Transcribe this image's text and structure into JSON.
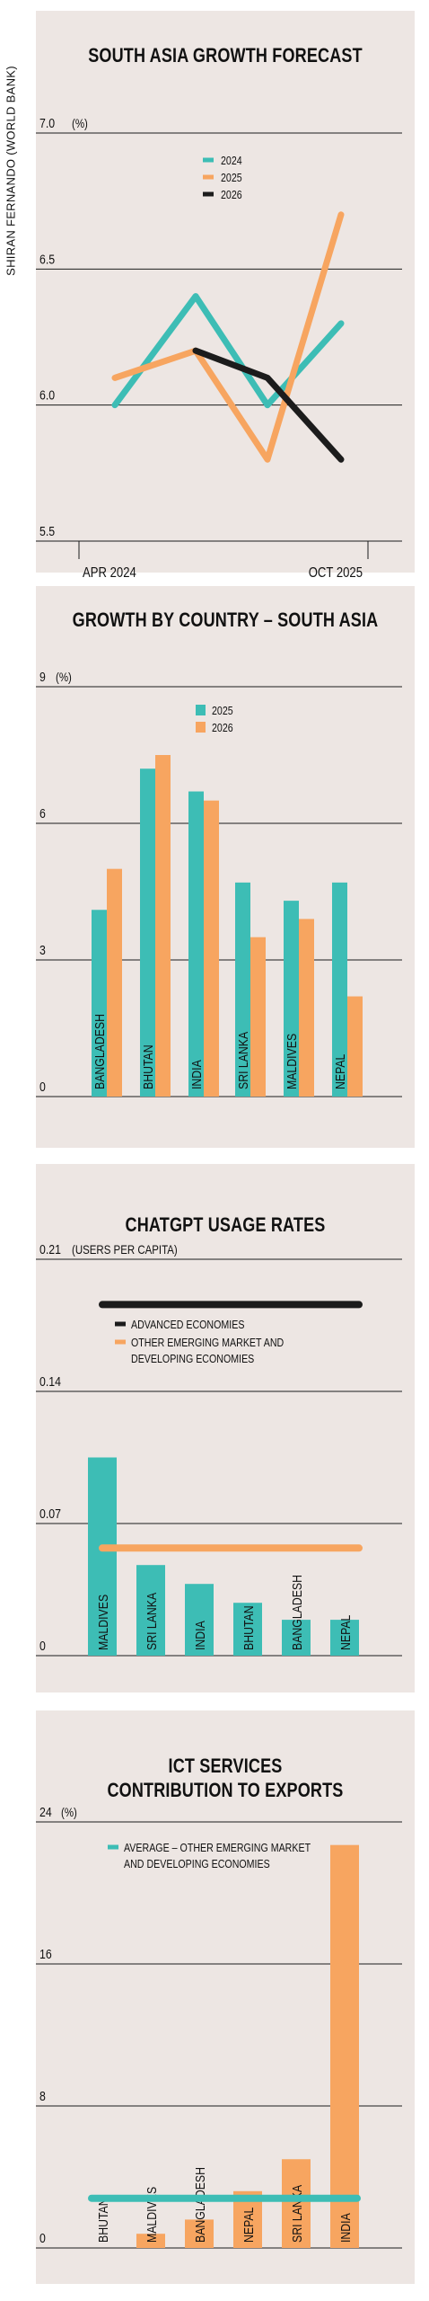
{
  "credit": "SHIRAN FERNANDO (WORLD BANK)",
  "colors": {
    "teal": "#3dbdb5",
    "orange": "#f7a560",
    "black": "#1c1c1c",
    "panel": "#ede6e3",
    "grid": "#1c1c1c"
  },
  "chart_data": [
    {
      "type": "line",
      "title": "SOUTH ASIA GROWTH FORECAST",
      "unit": "(%)",
      "ylim": [
        5.5,
        7.0
      ],
      "yticks": [
        "7.0",
        "6.5",
        "6.0",
        "5.5"
      ],
      "x_labels": [
        "APR 2024",
        "OCT 2025"
      ],
      "x": [
        0,
        1,
        2,
        3
      ],
      "legend_position": "top-center",
      "series": [
        {
          "name": "2024",
          "color": "#3dbdb5",
          "x": [
            0,
            1,
            2,
            3
          ],
          "values": [
            6.0,
            6.4,
            6.0,
            6.3
          ]
        },
        {
          "name": "2025",
          "color": "#f7a560",
          "x": [
            0,
            1,
            2,
            3
          ],
          "values": [
            6.1,
            6.2,
            5.8,
            6.7
          ]
        },
        {
          "name": "2026",
          "color": "#1c1c1c",
          "x": [
            1,
            2,
            3
          ],
          "values": [
            6.2,
            6.1,
            5.8
          ]
        }
      ]
    },
    {
      "type": "bar",
      "title": "GROWTH BY COUNTRY – SOUTH ASIA",
      "unit": "(%)",
      "ylim": [
        0,
        9
      ],
      "yticks": [
        "9",
        "6",
        "3",
        "0"
      ],
      "categories": [
        "BANGLADESH",
        "BHUTAN",
        "INDIA",
        "SRI LANKA",
        "MALDIVES",
        "NEPAL"
      ],
      "legend_position": "top-center",
      "series": [
        {
          "name": "2025",
          "color": "#3dbdb5",
          "values": [
            4.1,
            7.2,
            6.7,
            4.7,
            4.3,
            4.7
          ]
        },
        {
          "name": "2026",
          "color": "#f7a560",
          "values": [
            5.0,
            7.5,
            6.5,
            3.5,
            3.9,
            2.2
          ]
        }
      ]
    },
    {
      "type": "bar",
      "title": "CHATGPT USAGE RATES",
      "unit": "(USERS PER CAPITA)",
      "ylim": [
        0,
        0.21
      ],
      "yticks": [
        "0.21",
        "0.14",
        "0.07",
        "0"
      ],
      "categories": [
        "MALDIVES",
        "SRI LANKA",
        "INDIA",
        "BHUTAN",
        "BANGLADESH",
        "NEPAL"
      ],
      "legend_position": "top-center",
      "series": [
        {
          "color": "#3dbdb5",
          "values": [
            0.105,
            0.048,
            0.038,
            0.028,
            0.019,
            0.019
          ]
        }
      ],
      "reference_lines": [
        {
          "name": "ADVANCED ECONOMIES",
          "color": "#1c1c1c",
          "value": 0.186
        },
        {
          "name": "OTHER EMERGING MARKET AND DEVELOPING ECONOMIES",
          "color": "#f7a560",
          "value": 0.057
        }
      ]
    },
    {
      "type": "bar",
      "title": "ICT SERVICES CONTRIBUTION TO EXPORTS",
      "unit": "(%)",
      "ylim": [
        0,
        24
      ],
      "yticks": [
        "24",
        "16",
        "8",
        "0"
      ],
      "categories": [
        "BHUTAN",
        "MALDIVES",
        "BANGLADESH",
        "NEPAL",
        "SRI LANKA",
        "INDIA"
      ],
      "legend_position": "top-center",
      "series": [
        {
          "color": "#f7a560",
          "values": [
            0.0,
            0.8,
            1.6,
            3.2,
            5.0,
            22.7
          ]
        }
      ],
      "reference_lines": [
        {
          "name": "AVERAGE – OTHER EMERGING MARKET AND DEVELOPING ECONOMIES",
          "color": "#3dbdb5",
          "value": 2.8
        }
      ]
    }
  ]
}
